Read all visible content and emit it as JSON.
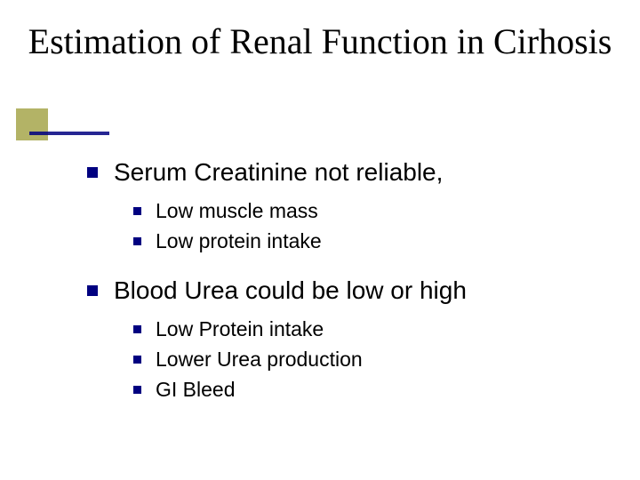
{
  "slide": {
    "title": "Estimation of Renal Function in Cirhosis",
    "title_font": "Times New Roman",
    "title_fontsize": 40,
    "title_color": "#000000",
    "bullet_color": "#000080",
    "accent_square_color": "#808000",
    "accent_bar_color": "#000080",
    "background_color": "#ffffff",
    "body_font": "Verdana",
    "l1_fontsize": 28,
    "l2_fontsize": 23,
    "items": [
      {
        "text": "Serum Creatinine not reliable,",
        "children": [
          {
            "text": "Low muscle mass"
          },
          {
            "text": "Low protein intake"
          }
        ]
      },
      {
        "text": "Blood Urea could be low or high",
        "children": [
          {
            "text": "Low Protein intake"
          },
          {
            "text": "Lower Urea production"
          },
          {
            "text": "GI Bleed"
          }
        ]
      }
    ]
  }
}
